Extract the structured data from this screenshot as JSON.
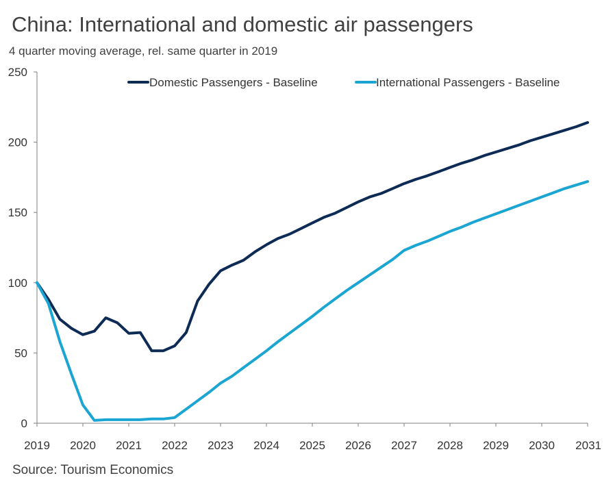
{
  "chart_data": {
    "type": "line",
    "title": "China: International and domestic air passengers",
    "subtitle": "4 quarter moving average, rel. same quarter in 2019",
    "source": "Source: Tourism Economics",
    "xlabel": "",
    "ylabel": "",
    "xlim": [
      2019,
      2031
    ],
    "ylim": [
      0,
      250
    ],
    "yticks": [
      0,
      50,
      100,
      150,
      200,
      250
    ],
    "xticks": [
      "2019",
      "2020",
      "2021",
      "2022",
      "2023",
      "2024",
      "2025",
      "2026",
      "2027",
      "2028",
      "2029",
      "2030",
      "2031"
    ],
    "grid": false,
    "legend_position": "top",
    "series": [
      {
        "name": "Domestic Passengers - Baseline",
        "color": "#0d2b55",
        "points": [
          [
            2019.0,
            100
          ],
          [
            2019.25,
            88
          ],
          [
            2019.5,
            74
          ],
          [
            2019.75,
            67.5
          ],
          [
            2020.0,
            63
          ],
          [
            2020.25,
            65.5
          ],
          [
            2020.5,
            75
          ],
          [
            2020.75,
            71.5
          ],
          [
            2021.0,
            64
          ],
          [
            2021.25,
            64.5
          ],
          [
            2021.5,
            51.5
          ],
          [
            2021.75,
            51.5
          ],
          [
            2022.0,
            55
          ],
          [
            2022.25,
            64.5
          ],
          [
            2022.5,
            87
          ],
          [
            2022.75,
            99
          ],
          [
            2023.0,
            108.5
          ],
          [
            2023.25,
            112.5
          ],
          [
            2023.5,
            116
          ],
          [
            2023.75,
            122
          ],
          [
            2024.0,
            127
          ],
          [
            2024.25,
            131.5
          ],
          [
            2024.5,
            134.5
          ],
          [
            2024.75,
            138.5
          ],
          [
            2025.0,
            142.5
          ],
          [
            2025.25,
            146.5
          ],
          [
            2025.5,
            149.5
          ],
          [
            2025.75,
            153.5
          ],
          [
            2026.0,
            157.5
          ],
          [
            2026.25,
            161
          ],
          [
            2026.5,
            163.5
          ],
          [
            2026.75,
            167
          ],
          [
            2027.0,
            170.5
          ],
          [
            2027.25,
            173.5
          ],
          [
            2027.5,
            176
          ],
          [
            2027.75,
            179
          ],
          [
            2028.0,
            182
          ],
          [
            2028.25,
            185
          ],
          [
            2028.5,
            187.5
          ],
          [
            2028.75,
            190.5
          ],
          [
            2029.0,
            193
          ],
          [
            2029.25,
            195.5
          ],
          [
            2029.5,
            198
          ],
          [
            2029.75,
            201
          ],
          [
            2030.0,
            203.5
          ],
          [
            2030.25,
            206
          ],
          [
            2030.5,
            208.5
          ],
          [
            2030.75,
            211
          ],
          [
            2031.0,
            214
          ]
        ]
      },
      {
        "name": "International Passengers - Baseline",
        "color": "#1ba5d2",
        "points": [
          [
            2019.0,
            100
          ],
          [
            2019.25,
            85
          ],
          [
            2019.5,
            58
          ],
          [
            2019.75,
            35
          ],
          [
            2020.0,
            13
          ],
          [
            2020.25,
            2
          ],
          [
            2020.5,
            2.5
          ],
          [
            2020.75,
            2.5
          ],
          [
            2021.0,
            2.5
          ],
          [
            2021.25,
            2.5
          ],
          [
            2021.5,
            3
          ],
          [
            2021.75,
            3
          ],
          [
            2022.0,
            4
          ],
          [
            2022.25,
            10
          ],
          [
            2022.5,
            16
          ],
          [
            2022.75,
            22
          ],
          [
            2023.0,
            28.5
          ],
          [
            2023.25,
            33.5
          ],
          [
            2023.5,
            39.5
          ],
          [
            2023.75,
            45.5
          ],
          [
            2024.0,
            51.5
          ],
          [
            2024.25,
            58
          ],
          [
            2024.5,
            64
          ],
          [
            2024.75,
            70
          ],
          [
            2025.0,
            76
          ],
          [
            2025.25,
            82.5
          ],
          [
            2025.5,
            88.5
          ],
          [
            2025.75,
            94.5
          ],
          [
            2026.0,
            100
          ],
          [
            2026.25,
            105.5
          ],
          [
            2026.5,
            111
          ],
          [
            2026.75,
            116.5
          ],
          [
            2027.0,
            123
          ],
          [
            2027.25,
            126.5
          ],
          [
            2027.5,
            129.5
          ],
          [
            2027.75,
            133
          ],
          [
            2028.0,
            136.5
          ],
          [
            2028.25,
            139.5
          ],
          [
            2028.5,
            143
          ],
          [
            2028.75,
            146
          ],
          [
            2029.0,
            149
          ],
          [
            2029.25,
            152
          ],
          [
            2029.5,
            155
          ],
          [
            2029.75,
            158
          ],
          [
            2030.0,
            161
          ],
          [
            2030.25,
            164
          ],
          [
            2030.5,
            167
          ],
          [
            2030.75,
            169.5
          ],
          [
            2031.0,
            172
          ]
        ]
      }
    ]
  }
}
